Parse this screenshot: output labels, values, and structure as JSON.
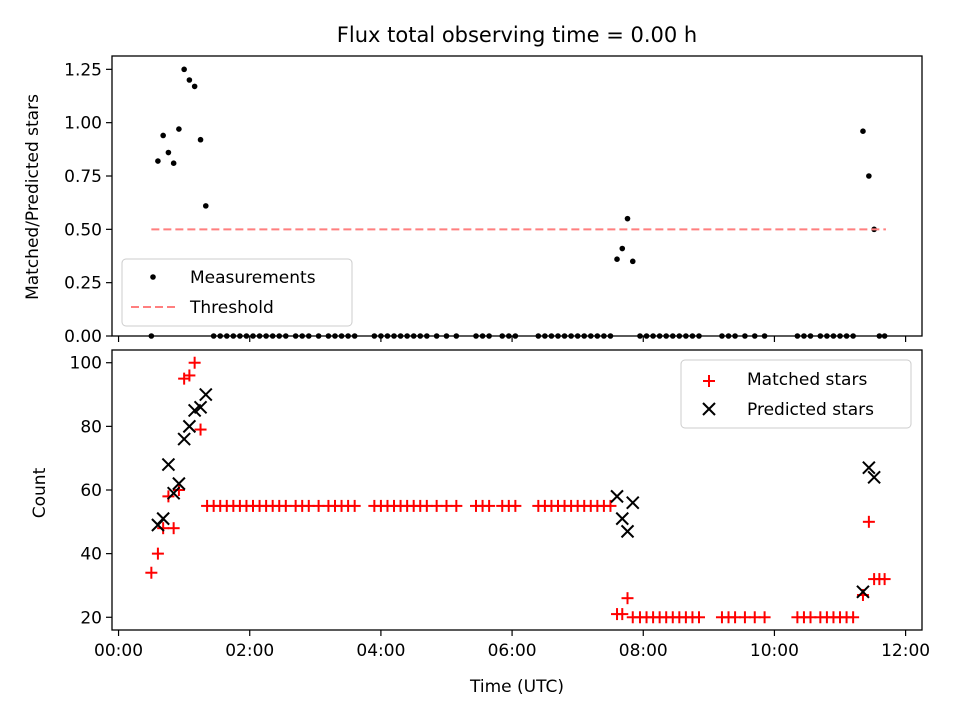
{
  "chart_data": [
    {
      "type": "scatter",
      "title": "Flux total observing time = 0.00 h",
      "xlabel": "",
      "ylabel": "Matched/Predicted stars",
      "xlim": [
        -0.1,
        12.25
      ],
      "ylim": [
        0,
        1.3125
      ],
      "yticks": [
        0.0,
        0.25,
        0.5,
        0.75,
        1.0,
        1.25
      ],
      "ytick_labels": [
        "0.00",
        "0.25",
        "0.50",
        "0.75",
        "1.00",
        "1.25"
      ],
      "legend": {
        "placement": "lower-left",
        "entries": [
          "Measurements",
          "Threshold"
        ]
      },
      "series": [
        {
          "name": "Measurements",
          "marker": "dot",
          "color": "#000000",
          "points": [
            [
              0.5,
              0.0
            ],
            [
              0.6,
              0.82
            ],
            [
              0.68,
              0.94
            ],
            [
              0.76,
              0.86
            ],
            [
              0.84,
              0.81
            ],
            [
              0.92,
              0.97
            ],
            [
              1.0,
              1.25
            ],
            [
              1.08,
              1.2
            ],
            [
              1.16,
              1.17
            ],
            [
              1.25,
              0.92
            ],
            [
              1.33,
              0.61
            ],
            [
              1.45,
              0.0
            ],
            [
              1.55,
              0.0
            ],
            [
              1.65,
              0.0
            ],
            [
              1.75,
              0.0
            ],
            [
              1.85,
              0.0
            ],
            [
              1.95,
              0.0
            ],
            [
              2.05,
              0.0
            ],
            [
              2.15,
              0.0
            ],
            [
              2.25,
              0.0
            ],
            [
              2.35,
              0.0
            ],
            [
              2.45,
              0.0
            ],
            [
              2.55,
              0.0
            ],
            [
              2.7,
              0.0
            ],
            [
              2.8,
              0.0
            ],
            [
              2.9,
              0.0
            ],
            [
              3.05,
              0.0
            ],
            [
              3.2,
              0.0
            ],
            [
              3.3,
              0.0
            ],
            [
              3.4,
              0.0
            ],
            [
              3.5,
              0.0
            ],
            [
              3.6,
              0.0
            ],
            [
              3.9,
              0.0
            ],
            [
              4.0,
              0.0
            ],
            [
              4.1,
              0.0
            ],
            [
              4.2,
              0.0
            ],
            [
              4.3,
              0.0
            ],
            [
              4.4,
              0.0
            ],
            [
              4.5,
              0.0
            ],
            [
              4.6,
              0.0
            ],
            [
              4.7,
              0.0
            ],
            [
              4.85,
              0.0
            ],
            [
              5.0,
              0.0
            ],
            [
              5.15,
              0.0
            ],
            [
              5.45,
              0.0
            ],
            [
              5.55,
              0.0
            ],
            [
              5.65,
              0.0
            ],
            [
              5.85,
              0.0
            ],
            [
              5.95,
              0.0
            ],
            [
              6.05,
              0.0
            ],
            [
              6.4,
              0.0
            ],
            [
              6.5,
              0.0
            ],
            [
              6.6,
              0.0
            ],
            [
              6.7,
              0.0
            ],
            [
              6.8,
              0.0
            ],
            [
              6.9,
              0.0
            ],
            [
              7.0,
              0.0
            ],
            [
              7.1,
              0.0
            ],
            [
              7.2,
              0.0
            ],
            [
              7.3,
              0.0
            ],
            [
              7.4,
              0.0
            ],
            [
              7.5,
              0.0
            ],
            [
              7.6,
              0.36
            ],
            [
              7.68,
              0.41
            ],
            [
              7.76,
              0.55
            ],
            [
              7.84,
              0.35
            ],
            [
              7.95,
              0.0
            ],
            [
              8.05,
              0.0
            ],
            [
              8.15,
              0.0
            ],
            [
              8.25,
              0.0
            ],
            [
              8.35,
              0.0
            ],
            [
              8.45,
              0.0
            ],
            [
              8.55,
              0.0
            ],
            [
              8.65,
              0.0
            ],
            [
              8.75,
              0.0
            ],
            [
              8.85,
              0.0
            ],
            [
              9.2,
              0.0
            ],
            [
              9.3,
              0.0
            ],
            [
              9.4,
              0.0
            ],
            [
              9.55,
              0.0
            ],
            [
              9.7,
              0.0
            ],
            [
              9.85,
              0.0
            ],
            [
              10.35,
              0.0
            ],
            [
              10.45,
              0.0
            ],
            [
              10.55,
              0.0
            ],
            [
              10.7,
              0.0
            ],
            [
              10.8,
              0.0
            ],
            [
              10.9,
              0.0
            ],
            [
              11.0,
              0.0
            ],
            [
              11.1,
              0.0
            ],
            [
              11.2,
              0.0
            ],
            [
              11.35,
              0.96
            ],
            [
              11.44,
              0.75
            ],
            [
              11.52,
              0.5
            ],
            [
              11.6,
              0.0
            ],
            [
              11.68,
              0.0
            ]
          ]
        },
        {
          "name": "Threshold",
          "type": "line",
          "style": "dashed",
          "color": "#ff7f7f",
          "x": [
            0.5,
            11.7
          ],
          "y": [
            0.5,
            0.5
          ]
        }
      ]
    },
    {
      "type": "scatter",
      "title": "",
      "xlabel": "Time (UTC)",
      "ylabel": "Count",
      "xlim": [
        -0.1,
        12.25
      ],
      "ylim": [
        16,
        104
      ],
      "xticks": [
        0,
        2,
        4,
        6,
        8,
        10,
        12
      ],
      "xtick_labels": [
        "00:00",
        "02:00",
        "04:00",
        "06:00",
        "08:00",
        "10:00",
        "12:00"
      ],
      "yticks": [
        20,
        40,
        60,
        80,
        100
      ],
      "ytick_labels": [
        "20",
        "40",
        "60",
        "80",
        "100"
      ],
      "legend": {
        "placement": "upper-right",
        "entries": [
          "Matched stars",
          "Predicted stars"
        ]
      },
      "series": [
        {
          "name": "Matched stars",
          "marker": "plus",
          "color": "#ff0000",
          "points": [
            [
              0.5,
              34
            ],
            [
              0.6,
              40
            ],
            [
              0.68,
              48
            ],
            [
              0.76,
              58
            ],
            [
              0.84,
              48
            ],
            [
              0.92,
              60
            ],
            [
              1.0,
              95
            ],
            [
              1.08,
              96
            ],
            [
              1.16,
              100
            ],
            [
              1.25,
              79
            ],
            [
              1.35,
              55
            ],
            [
              1.45,
              55
            ],
            [
              1.55,
              55
            ],
            [
              1.65,
              55
            ],
            [
              1.75,
              55
            ],
            [
              1.85,
              55
            ],
            [
              1.95,
              55
            ],
            [
              2.05,
              55
            ],
            [
              2.15,
              55
            ],
            [
              2.25,
              55
            ],
            [
              2.35,
              55
            ],
            [
              2.45,
              55
            ],
            [
              2.55,
              55
            ],
            [
              2.7,
              55
            ],
            [
              2.8,
              55
            ],
            [
              2.9,
              55
            ],
            [
              3.05,
              55
            ],
            [
              3.2,
              55
            ],
            [
              3.3,
              55
            ],
            [
              3.4,
              55
            ],
            [
              3.5,
              55
            ],
            [
              3.6,
              55
            ],
            [
              3.9,
              55
            ],
            [
              4.0,
              55
            ],
            [
              4.1,
              55
            ],
            [
              4.2,
              55
            ],
            [
              4.3,
              55
            ],
            [
              4.4,
              55
            ],
            [
              4.5,
              55
            ],
            [
              4.6,
              55
            ],
            [
              4.7,
              55
            ],
            [
              4.85,
              55
            ],
            [
              5.0,
              55
            ],
            [
              5.15,
              55
            ],
            [
              5.45,
              55
            ],
            [
              5.55,
              55
            ],
            [
              5.65,
              55
            ],
            [
              5.85,
              55
            ],
            [
              5.95,
              55
            ],
            [
              6.05,
              55
            ],
            [
              6.4,
              55
            ],
            [
              6.5,
              55
            ],
            [
              6.6,
              55
            ],
            [
              6.7,
              55
            ],
            [
              6.8,
              55
            ],
            [
              6.9,
              55
            ],
            [
              7.0,
              55
            ],
            [
              7.1,
              55
            ],
            [
              7.2,
              55
            ],
            [
              7.3,
              55
            ],
            [
              7.4,
              55
            ],
            [
              7.5,
              55
            ],
            [
              7.6,
              21
            ],
            [
              7.68,
              21
            ],
            [
              7.76,
              26
            ],
            [
              7.84,
              20
            ],
            [
              7.95,
              20
            ],
            [
              8.05,
              20
            ],
            [
              8.15,
              20
            ],
            [
              8.25,
              20
            ],
            [
              8.35,
              20
            ],
            [
              8.45,
              20
            ],
            [
              8.55,
              20
            ],
            [
              8.65,
              20
            ],
            [
              8.75,
              20
            ],
            [
              8.85,
              20
            ],
            [
              9.2,
              20
            ],
            [
              9.3,
              20
            ],
            [
              9.4,
              20
            ],
            [
              9.55,
              20
            ],
            [
              9.7,
              20
            ],
            [
              9.85,
              20
            ],
            [
              10.35,
              20
            ],
            [
              10.45,
              20
            ],
            [
              10.55,
              20
            ],
            [
              10.7,
              20
            ],
            [
              10.8,
              20
            ],
            [
              10.9,
              20
            ],
            [
              11.0,
              20
            ],
            [
              11.1,
              20
            ],
            [
              11.2,
              20
            ],
            [
              11.35,
              27
            ],
            [
              11.44,
              50
            ],
            [
              11.52,
              32
            ],
            [
              11.6,
              32
            ],
            [
              11.68,
              32
            ]
          ]
        },
        {
          "name": "Predicted stars",
          "marker": "x",
          "color": "#000000",
          "points": [
            [
              0.6,
              49
            ],
            [
              0.68,
              51
            ],
            [
              0.76,
              68
            ],
            [
              0.84,
              59
            ],
            [
              0.92,
              62
            ],
            [
              1.0,
              76
            ],
            [
              1.08,
              80
            ],
            [
              1.16,
              85
            ],
            [
              1.25,
              86
            ],
            [
              1.33,
              90
            ],
            [
              7.6,
              58
            ],
            [
              7.68,
              51
            ],
            [
              7.76,
              47
            ],
            [
              7.84,
              56
            ],
            [
              11.35,
              28
            ],
            [
              11.44,
              67
            ],
            [
              11.52,
              64
            ]
          ]
        }
      ]
    }
  ]
}
